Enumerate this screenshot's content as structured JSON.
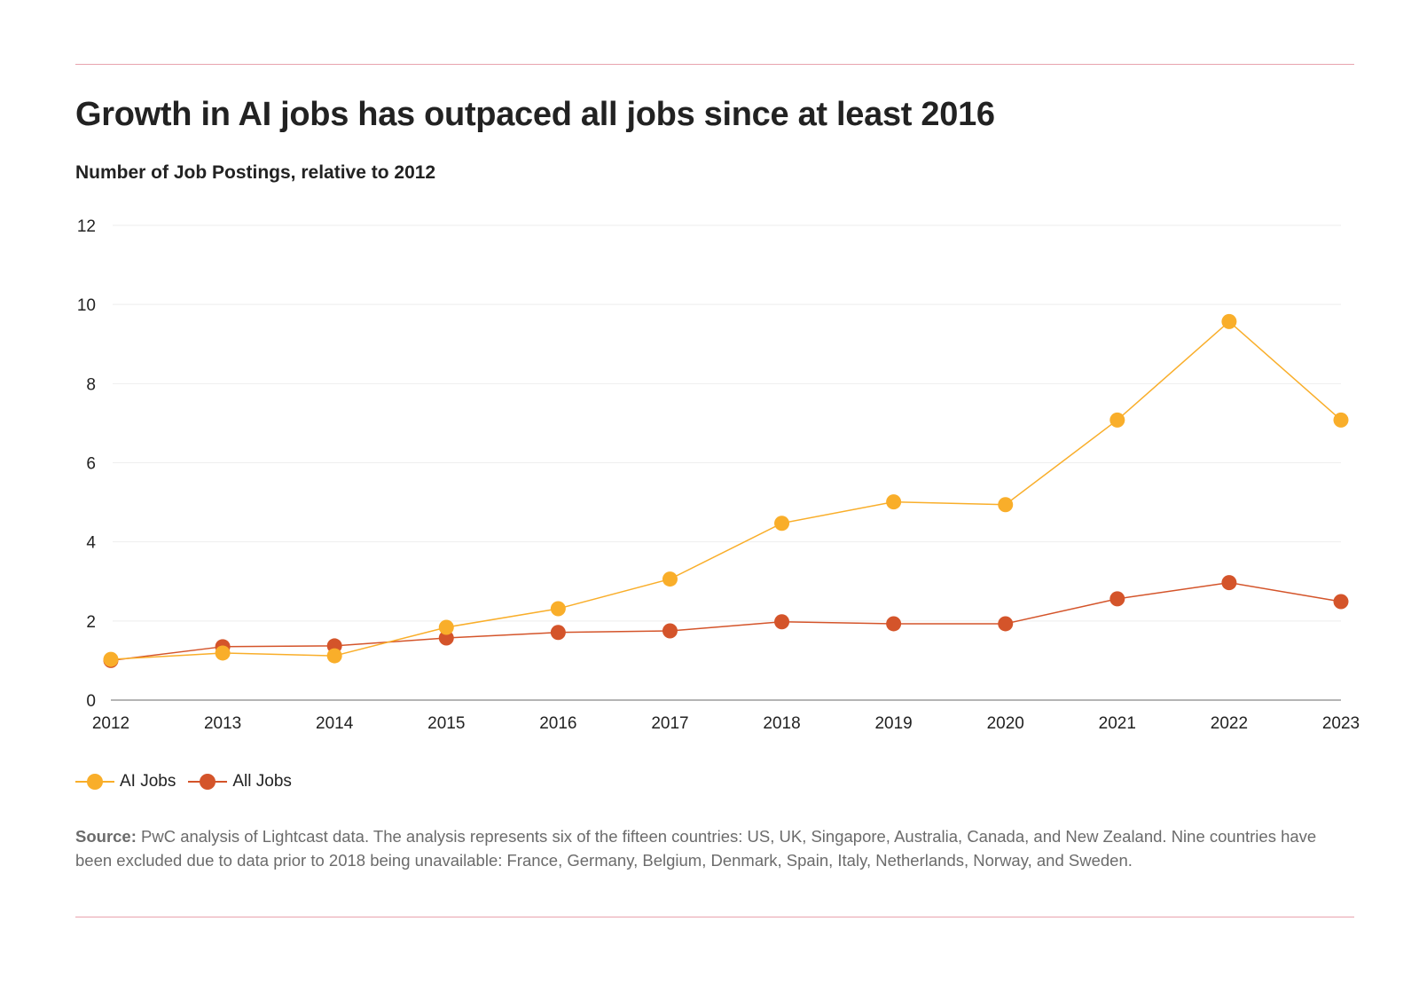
{
  "header": {
    "title": "Growth in AI jobs has outpaced all jobs since at least 2016",
    "subtitle": "Number of Job Postings, relative to 2012"
  },
  "colors": {
    "accent_rule": "#E8A3AE",
    "ai_jobs": "#F9AE2A",
    "all_jobs": "#D4542A",
    "axis": "#888888",
    "grid": "#EEEEEE"
  },
  "chart_data": {
    "type": "line",
    "title": "Growth in AI jobs has outpaced all jobs since at least 2016",
    "subtitle": "Number of Job Postings, relative to 2012",
    "xlabel": "",
    "ylabel": "",
    "x": [
      "2012",
      "2013",
      "2014",
      "2015",
      "2016",
      "2017",
      "2018",
      "2019",
      "2020",
      "2021",
      "2022",
      "2023"
    ],
    "ylim": [
      0,
      12
    ],
    "yticks": [
      "0",
      "2",
      "4",
      "6",
      "8",
      "10",
      "12"
    ],
    "ytick_values": [
      0,
      2,
      4,
      6,
      8,
      10,
      12
    ],
    "grid": true,
    "legend_position": "bottom-left",
    "series": [
      {
        "name": "All Jobs",
        "color": "#D4542A",
        "values": [
          1.0,
          1.35,
          1.37,
          1.57,
          1.71,
          1.75,
          1.98,
          1.93,
          1.93,
          2.56,
          2.97,
          2.49
        ]
      },
      {
        "name": "AI Jobs",
        "color": "#F9AE2A",
        "values": [
          1.03,
          1.19,
          1.12,
          1.84,
          2.31,
          3.06,
          4.47,
          5.01,
          4.94,
          7.08,
          9.57,
          7.08
        ]
      }
    ]
  },
  "legend": {
    "items": [
      {
        "label": "AI Jobs",
        "color": "#F9AE2A"
      },
      {
        "label": "All Jobs",
        "color": "#D4542A"
      }
    ]
  },
  "footer": {
    "source_label": "Source:",
    "source_text": " PwC analysis of Lightcast data. The analysis represents six of the fifteen countries: US, UK, Singapore, Australia, Canada, and New Zealand. Nine countries have been excluded due to data prior to 2018 being unavailable: France, Germany, Belgium, Denmark, Spain, Italy, Netherlands, Norway, and Sweden."
  }
}
